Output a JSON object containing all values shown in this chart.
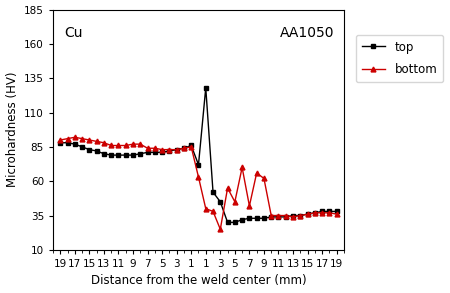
{
  "top_x": [
    -19,
    -18,
    -17,
    -16,
    -15,
    -14,
    -13,
    -12,
    -11,
    -10,
    -9,
    -8,
    -7,
    -6,
    -5,
    -4,
    -3,
    -2,
    -1,
    0,
    1,
    2,
    3,
    4,
    5,
    6,
    7,
    8,
    9,
    10,
    11,
    12,
    13,
    14,
    15,
    16,
    17,
    18,
    19
  ],
  "top_y": [
    88,
    88,
    87,
    85,
    83,
    82,
    80,
    79,
    79,
    79,
    79,
    80,
    81,
    81,
    81,
    82,
    83,
    84,
    86,
    72,
    128,
    52,
    45,
    30,
    30,
    32,
    33,
    33,
    33,
    34,
    34,
    34,
    35,
    35,
    36,
    37,
    38,
    38,
    38
  ],
  "bottom_x": [
    -19,
    -18,
    -17,
    -16,
    -15,
    -14,
    -13,
    -12,
    -11,
    -10,
    -9,
    -8,
    -7,
    -6,
    -5,
    -4,
    -3,
    -2,
    -1,
    0,
    1,
    2,
    3,
    4,
    5,
    6,
    7,
    8,
    9,
    10,
    11,
    12,
    13,
    14,
    15,
    16,
    17,
    18,
    19
  ],
  "bottom_y": [
    90,
    91,
    92,
    91,
    90,
    89,
    88,
    86,
    86,
    86,
    87,
    87,
    84,
    84,
    83,
    83,
    83,
    84,
    85,
    63,
    40,
    38,
    25,
    55,
    45,
    70,
    42,
    66,
    62,
    35,
    35,
    35,
    34,
    35,
    36,
    37,
    37,
    37,
    36
  ],
  "top_color": "#000000",
  "bottom_color": "#cc0000",
  "top_marker": "s",
  "bottom_marker": "^",
  "top_label": "top",
  "bottom_label": "bottom",
  "xlabel": "Distance from the weld center (mm)",
  "ylabel": "Microhardness (HV)",
  "ylim": [
    10,
    185
  ],
  "yticks": [
    10,
    35,
    60,
    85,
    110,
    135,
    160,
    185
  ],
  "xtick_positions": [
    -19,
    -17,
    -15,
    -13,
    -11,
    -9,
    -7,
    -5,
    -3,
    -1,
    1,
    3,
    5,
    7,
    9,
    11,
    13,
    15,
    17,
    19
  ],
  "xtick_labels": [
    "19",
    "17",
    "15",
    "13",
    "11",
    "9",
    "7",
    "5",
    "3",
    "1",
    "1",
    "3",
    "5",
    "7",
    "9",
    "11",
    "13",
    "15",
    "17",
    "19"
  ],
  "text_cu": "Cu",
  "text_aa": "AA1050",
  "background_color": "#ffffff",
  "linewidth": 1.0,
  "markersize": 3.5,
  "tick_fontsize": 7.5,
  "label_fontsize": 8.5,
  "legend_fontsize": 8.5
}
